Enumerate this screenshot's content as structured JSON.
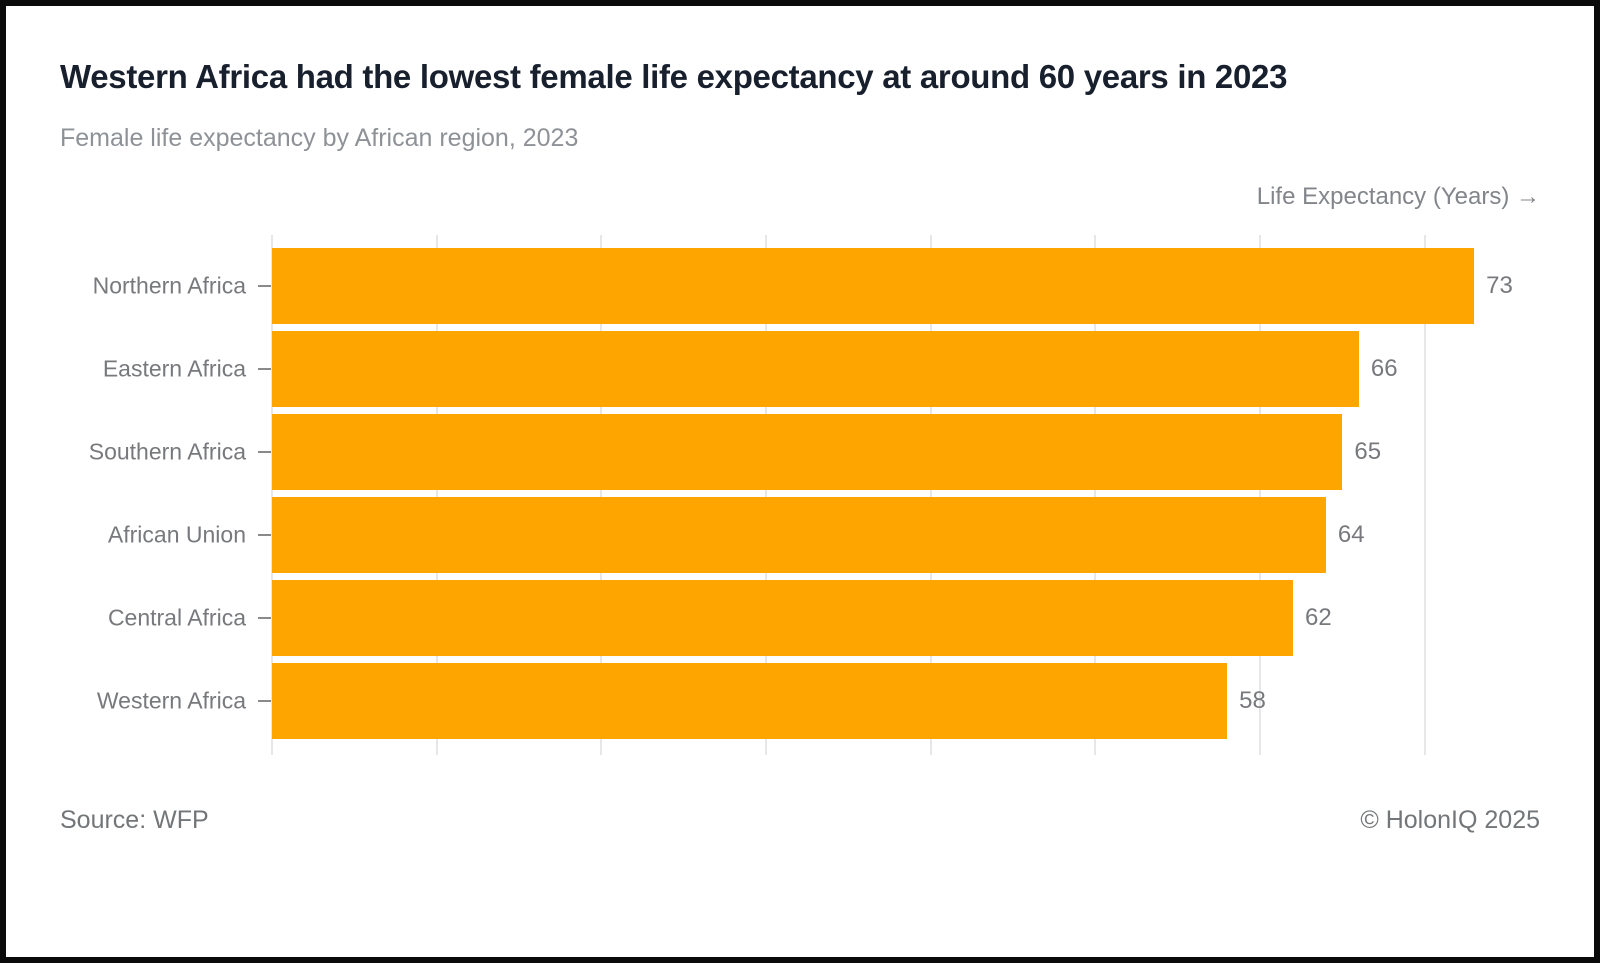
{
  "page": {
    "background": "#ffffff",
    "frame_color": "#0a0a0a"
  },
  "header": {
    "title": "Western Africa had the lowest female life expectancy at around 60 years in 2023",
    "subtitle": "Female life expectancy by African region, 2023"
  },
  "chart_data": {
    "type": "bar",
    "orientation": "horizontal",
    "title": "Western Africa had the lowest female life expectancy at around 60 years in 2023",
    "subtitle": "Female life expectancy by African region, 2023",
    "xlabel": "Life Expectancy (Years) →",
    "ylabel": "",
    "categories": [
      "Northern Africa",
      "Eastern Africa",
      "Southern Africa",
      "African Union",
      "Central Africa",
      "Western Africa"
    ],
    "values": [
      73,
      66,
      65,
      64,
      62,
      58
    ],
    "xlim": [
      0,
      77
    ],
    "grid_x": [
      0,
      10,
      20,
      30,
      40,
      50,
      60,
      70
    ],
    "grid": "vertical-only",
    "legend": "none",
    "bar_color": "#FFA500",
    "value_labels": "outside-end"
  },
  "footer": {
    "source": "Source: WFP",
    "copyright": "© HolonIQ 2025"
  }
}
